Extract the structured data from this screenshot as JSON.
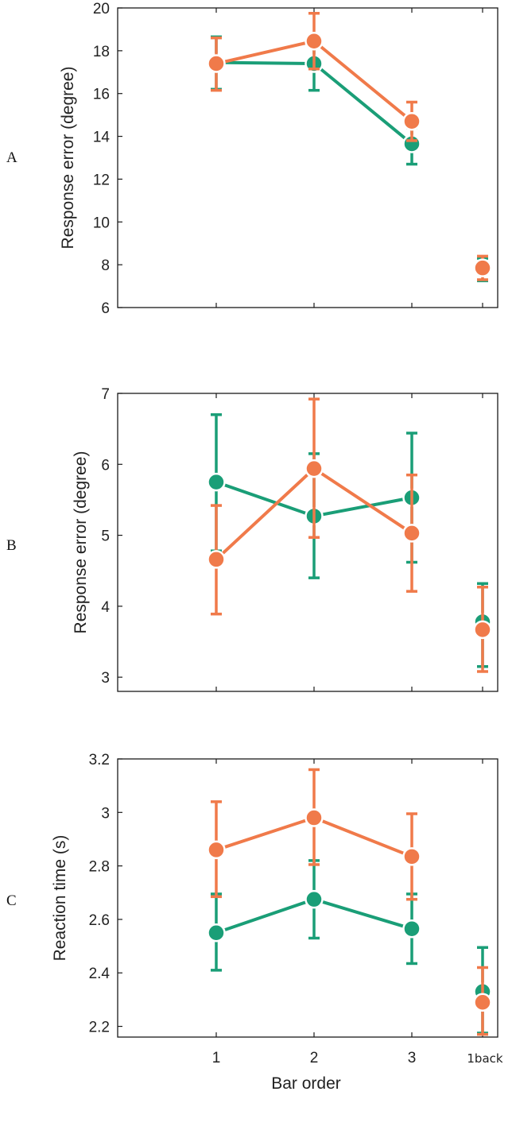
{
  "colors": {
    "green": "#1a9e77",
    "orange": "#f07a4a"
  },
  "chart_data": [
    {
      "panel_label": "A",
      "type": "line",
      "ylabel": "Response error (degree)",
      "xlabel": "",
      "categories": [
        "1",
        "2",
        "3",
        "1back"
      ],
      "ylim": [
        6,
        20
      ],
      "yticks": [
        "6",
        "8",
        "10",
        "12",
        "14",
        "16",
        "18",
        "20"
      ],
      "grid": false,
      "series": [
        {
          "color": "green",
          "values": [
            17.45,
            17.4,
            13.65,
            7.8
          ],
          "err_low": [
            16.2,
            16.15,
            12.7,
            7.25
          ],
          "err_high": [
            18.65,
            18.6,
            14.4,
            8.3
          ]
        },
        {
          "color": "orange",
          "values": [
            17.4,
            18.45,
            14.7,
            7.85
          ],
          "err_low": [
            16.15,
            17.15,
            13.8,
            7.3
          ],
          "err_high": [
            18.6,
            19.75,
            15.6,
            8.4
          ]
        }
      ]
    },
    {
      "panel_label": "B",
      "type": "line",
      "ylabel": "Response error (degree)",
      "xlabel": "",
      "categories": [
        "1",
        "2",
        "3",
        "1back"
      ],
      "ylim": [
        2.8,
        7
      ],
      "yticks": [
        "3",
        "4",
        "5",
        "6",
        "7"
      ],
      "grid": false,
      "series": [
        {
          "color": "green",
          "values": [
            5.75,
            5.27,
            5.53,
            3.78
          ],
          "err_low": [
            4.78,
            4.4,
            4.62,
            3.15
          ],
          "err_high": [
            6.7,
            6.15,
            6.44,
            4.32
          ]
        },
        {
          "color": "orange",
          "values": [
            4.66,
            5.94,
            5.03,
            3.67
          ],
          "err_low": [
            3.89,
            4.97,
            4.21,
            3.08
          ],
          "err_high": [
            5.42,
            6.92,
            5.85,
            4.27
          ]
        }
      ]
    },
    {
      "panel_label": "C",
      "type": "line",
      "ylabel": "Reaction time (s)",
      "xlabel": "Bar order",
      "categories": [
        "1",
        "2",
        "3",
        "1back"
      ],
      "ylim": [
        2.16,
        3.2
      ],
      "yticks": [
        "2.2",
        "2.4",
        "2.6",
        "2.8",
        "3",
        "3.2"
      ],
      "grid": false,
      "series": [
        {
          "color": "green",
          "values": [
            2.55,
            2.675,
            2.565,
            2.33
          ],
          "err_low": [
            2.41,
            2.53,
            2.435,
            2.175
          ],
          "err_high": [
            2.695,
            2.82,
            2.695,
            2.495
          ]
        },
        {
          "color": "orange",
          "values": [
            2.86,
            2.98,
            2.835,
            2.29
          ],
          "err_low": [
            2.685,
            2.805,
            2.675,
            2.17
          ],
          "err_high": [
            3.04,
            3.16,
            2.995,
            2.42
          ]
        }
      ]
    }
  ]
}
